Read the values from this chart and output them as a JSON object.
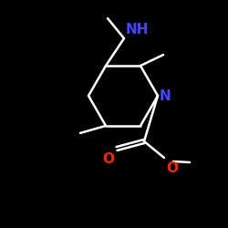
{
  "bg_color": "#000000",
  "line_color": "#ffffff",
  "N_color": "#4444ff",
  "O_color": "#ff2200",
  "NH_label": "NH",
  "N_label": "N",
  "O_label": "O",
  "font_size": 11,
  "lw": 1.8
}
